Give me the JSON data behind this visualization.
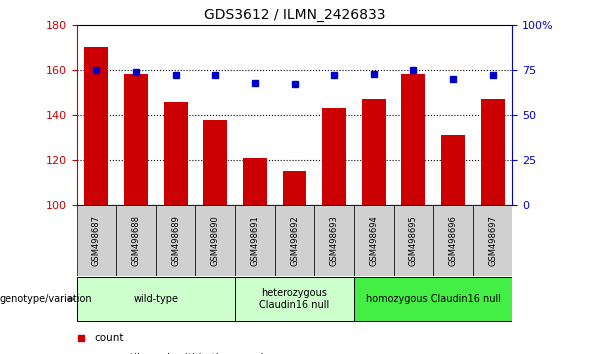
{
  "title": "GDS3612 / ILMN_2426833",
  "samples": [
    "GSM498687",
    "GSM498688",
    "GSM498689",
    "GSM498690",
    "GSM498691",
    "GSM498692",
    "GSM498693",
    "GSM498694",
    "GSM498695",
    "GSM498696",
    "GSM498697"
  ],
  "bar_values": [
    170,
    158,
    146,
    138,
    121,
    115,
    143,
    147,
    158,
    131,
    147
  ],
  "percentile_values": [
    75,
    74,
    72,
    72,
    68,
    67,
    72,
    73,
    75,
    70,
    72
  ],
  "ylim_left": [
    100,
    180
  ],
  "ylim_right": [
    0,
    100
  ],
  "yticks_left": [
    100,
    120,
    140,
    160,
    180
  ],
  "yticks_right": [
    0,
    25,
    50,
    75,
    100
  ],
  "bar_color": "#cc0000",
  "dot_color": "#0000cc",
  "sample_box_color": "#d0d0d0",
  "group_info": [
    {
      "label": "wild-type",
      "start": 0,
      "end": 3,
      "color": "#ccffcc"
    },
    {
      "label": "heterozygous\nClaudin16 null",
      "start": 4,
      "end": 6,
      "color": "#ccffcc"
    },
    {
      "label": "homozygous Claudin16 null",
      "start": 7,
      "end": 10,
      "color": "#44ee44"
    }
  ],
  "legend_count_color": "#cc0000",
  "legend_dot_color": "#0000cc",
  "dotted_lines": [
    120,
    140,
    160
  ],
  "background_color": "#ffffff"
}
